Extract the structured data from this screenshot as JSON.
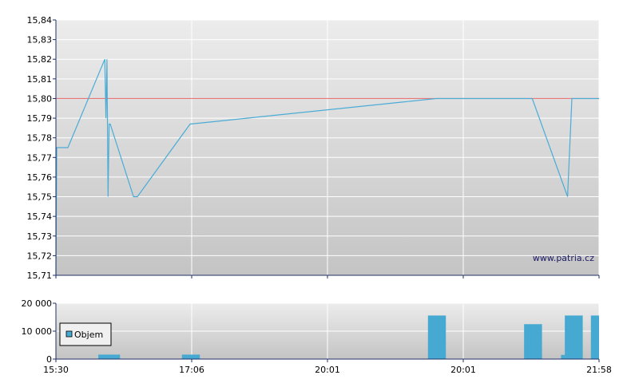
{
  "colors": {
    "price_line": "#4bacd6",
    "reference_line": "#e87878",
    "volume_bar": "#46a9d2",
    "axis": "#1f2f66",
    "grid": "#ffffff",
    "panel_top": "#ececec",
    "panel_bottom": "#c4c4c4"
  },
  "watermark": "www.patria.cz",
  "chart_data": [
    {
      "type": "line",
      "title": "",
      "xlabel": "",
      "ylabel": "",
      "ylim": [
        15.71,
        15.84
      ],
      "yticks": [
        15.71,
        15.72,
        15.73,
        15.74,
        15.75,
        15.76,
        15.77,
        15.78,
        15.79,
        15.8,
        15.81,
        15.82,
        15.83,
        15.84
      ],
      "ytick_labels": [
        "15,71",
        "15,72",
        "15,73",
        "15,74",
        "15,75",
        "15,76",
        "15,77",
        "15,78",
        "15,79",
        "15,80",
        "15,81",
        "15,82",
        "15,83",
        "15,84"
      ],
      "x_positions": [
        0.0,
        0.25,
        0.5,
        0.75,
        1.0
      ],
      "x_labels": [
        "15:30",
        "17:06",
        "20:01",
        "20:01",
        "21:58"
      ],
      "grid": true,
      "reference_line": 15.8,
      "series": [
        {
          "x": [
            0.0,
            0.0015,
            0.006,
            0.022,
            0.09,
            0.092,
            0.094,
            0.096,
            0.098,
            0.1,
            0.143,
            0.15,
            0.247,
            0.7,
            0.735,
            0.877,
            0.942,
            0.95,
            1.0
          ],
          "y": [
            15.71,
            15.775,
            15.775,
            15.775,
            15.82,
            15.79,
            15.82,
            15.75,
            15.787,
            15.787,
            15.75,
            15.75,
            15.787,
            15.8,
            15.8,
            15.8,
            15.75,
            15.8,
            15.8
          ]
        }
      ]
    },
    {
      "type": "bar",
      "title": "",
      "ylim": [
        0,
        20000
      ],
      "yticks": [
        0,
        10000,
        20000
      ],
      "ytick_labels": [
        "0",
        "10 000",
        "20 000"
      ],
      "x_positions": [
        0.0,
        0.25,
        0.5,
        0.75,
        1.0
      ],
      "x_labels": [
        "15:30",
        "17:06",
        "20:01",
        "20:01",
        "21:58"
      ],
      "legend": {
        "position": "left",
        "entries": [
          "Objem"
        ]
      },
      "bars": [
        {
          "x": 0.078,
          "x_end": 0.118,
          "value": 1600
        },
        {
          "x": 0.232,
          "x_end": 0.265,
          "value": 1600
        },
        {
          "x": 0.685,
          "x_end": 0.718,
          "value": 15600
        },
        {
          "x": 0.862,
          "x_end": 0.895,
          "value": 12500
        },
        {
          "x": 0.93,
          "x_end": 0.937,
          "value": 1500
        },
        {
          "x": 0.937,
          "x_end": 0.97,
          "value": 15600
        },
        {
          "x": 0.985,
          "x_end": 1.0,
          "value": 15600
        }
      ]
    }
  ]
}
